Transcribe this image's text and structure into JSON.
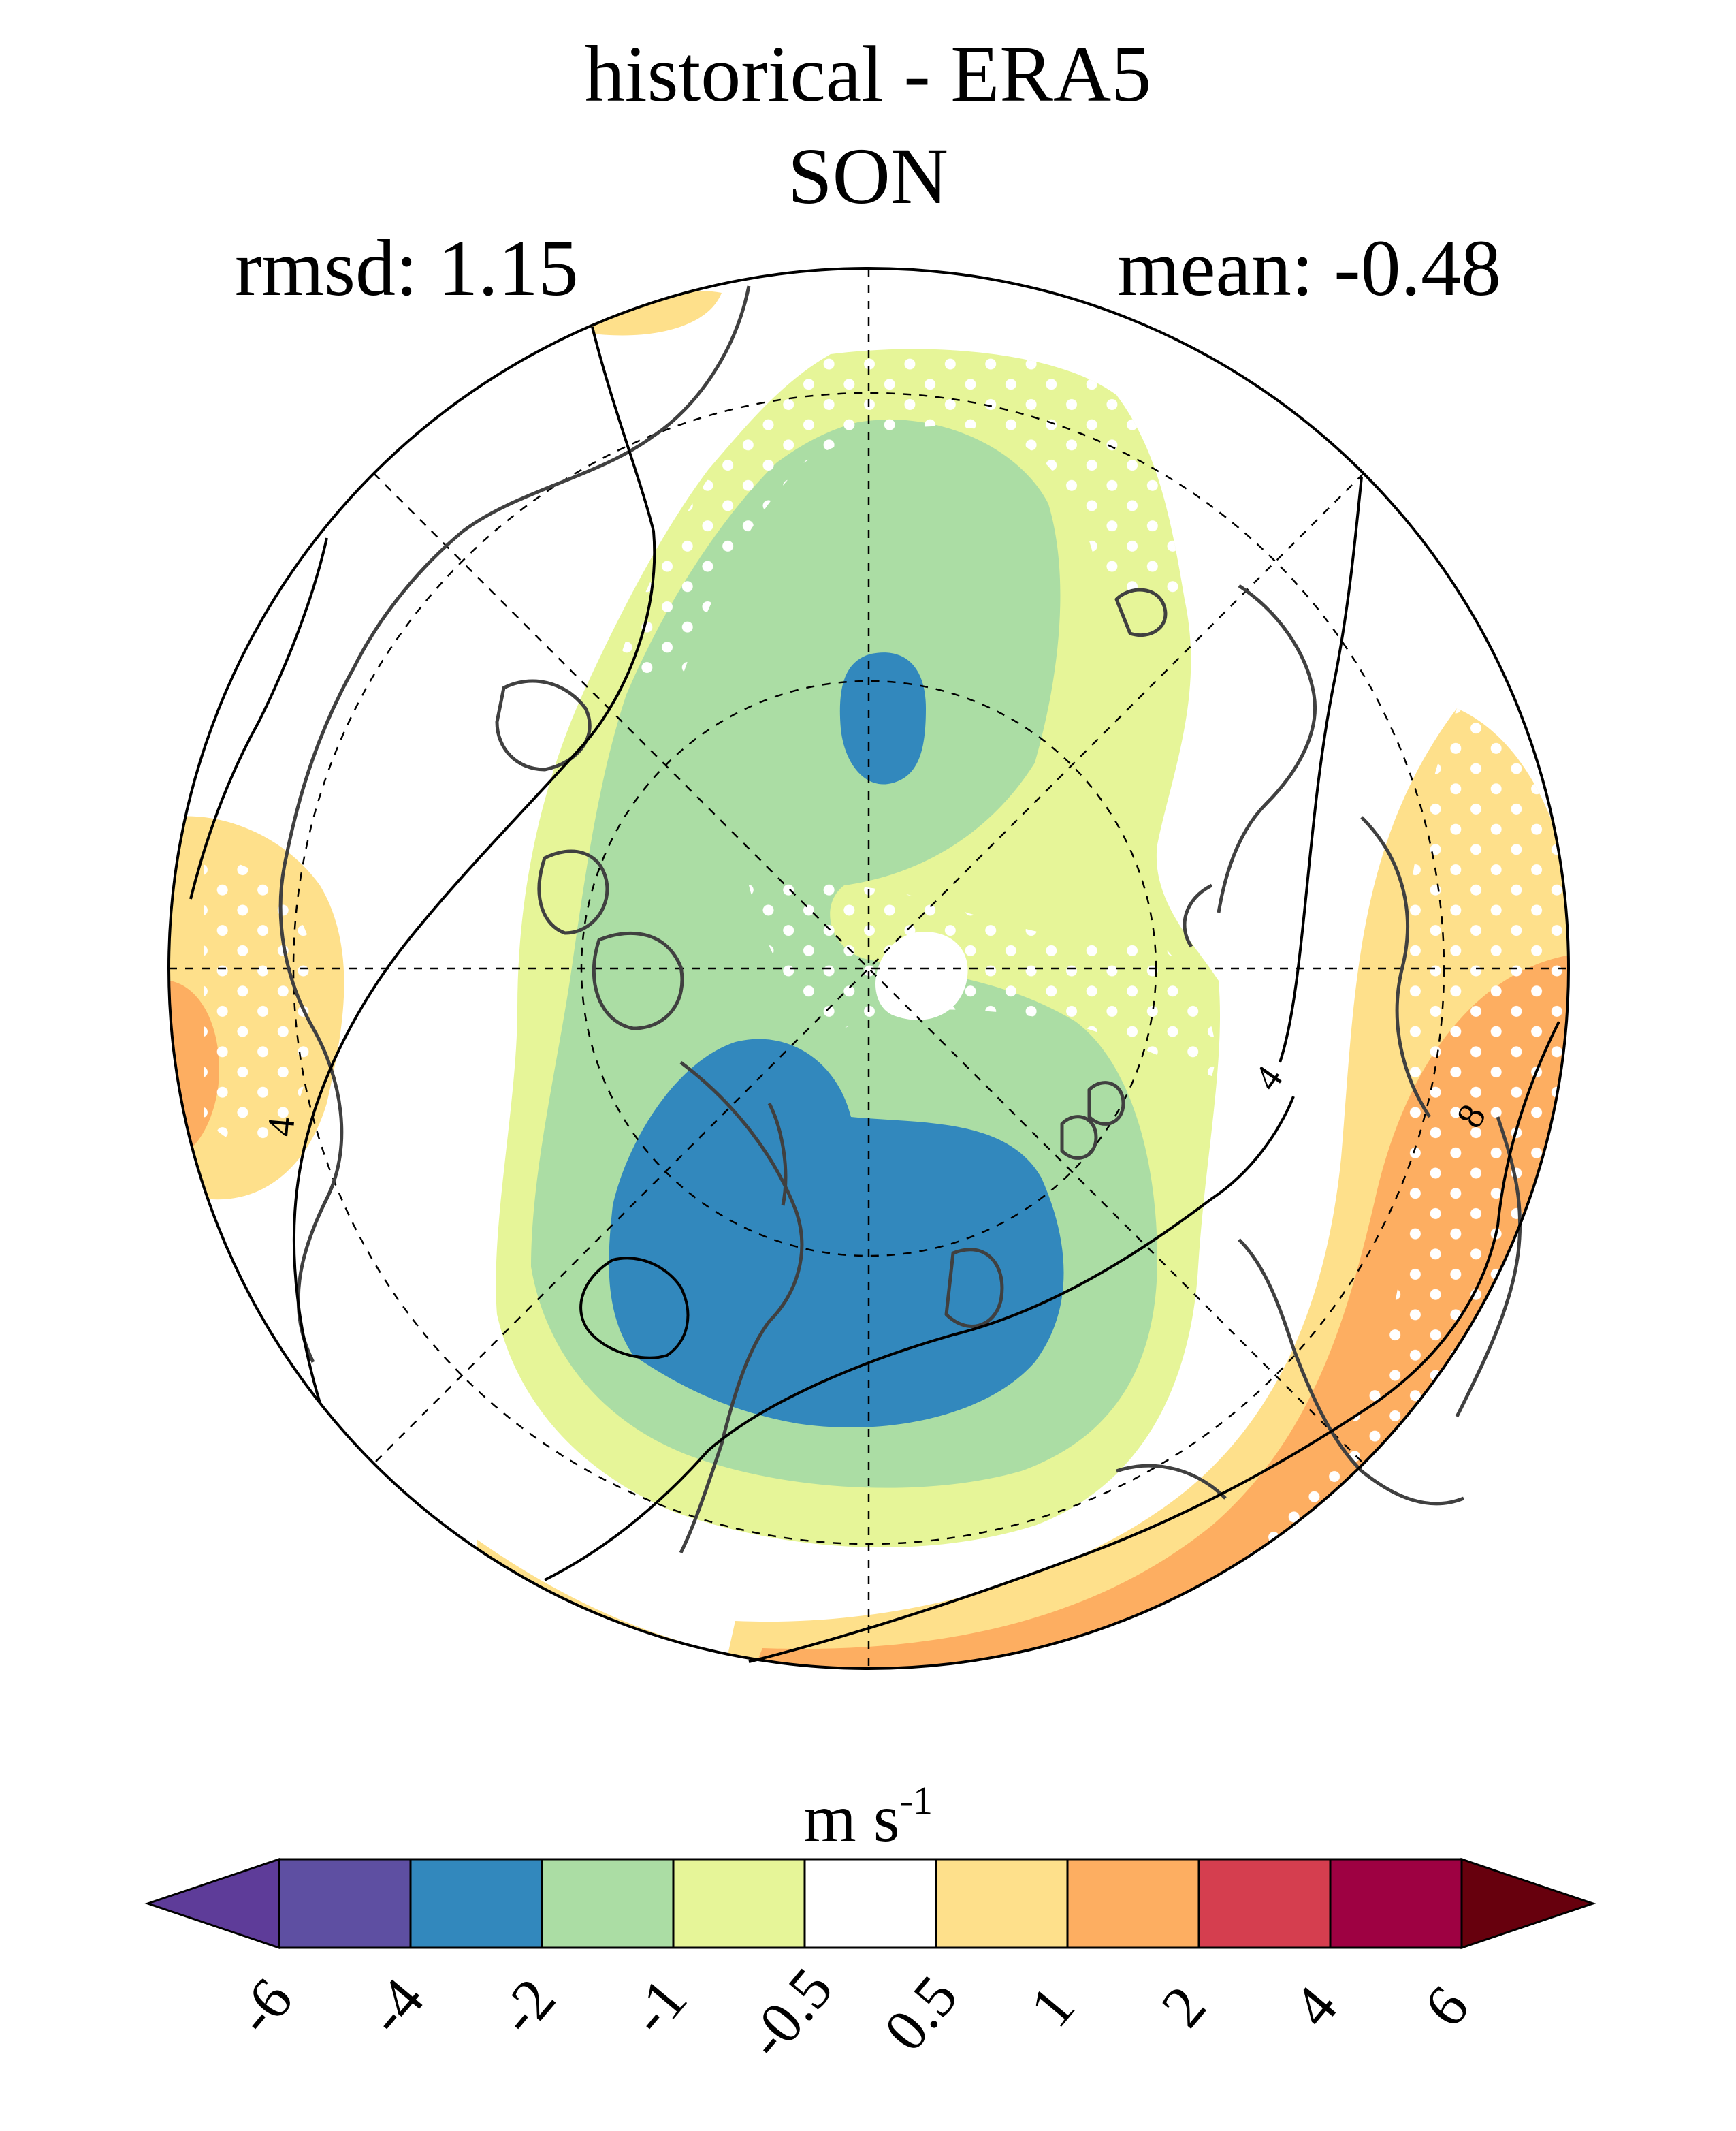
{
  "header": {
    "title": "historical - ERA5",
    "season": "SON",
    "rmsd_text": "rmsd: 1.15",
    "mean_text": "mean: -0.48"
  },
  "map": {
    "projection": "north-polar-stereographic",
    "contour_labels": [
      "4",
      "4",
      "8"
    ]
  },
  "colorbar": {
    "unit_base": "m s",
    "unit_exponent": "-1",
    "tick_labels": [
      "-6",
      "-4",
      "-2",
      "-1",
      "-0.5",
      "0.5",
      "1",
      "2",
      "4",
      "6"
    ],
    "colors": {
      "below_min": "#5e3c99",
      "c1": "#5e4fa2",
      "c2": "#3288bd",
      "c3": "#abdda4",
      "c4": "#e6f598",
      "c5": "#ffffff",
      "c6": "#fee08b",
      "c7": "#fdae61",
      "c8": "#d53e4f",
      "c9": "#9e0142",
      "above_max": "#67000d"
    }
  }
}
